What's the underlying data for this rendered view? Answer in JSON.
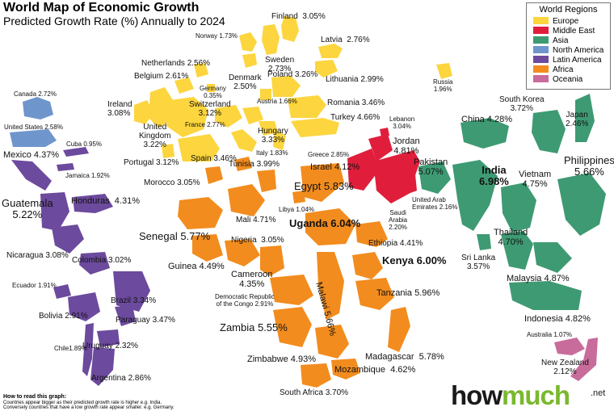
{
  "header": {
    "title": "World Map of Economic Growth",
    "subtitle": "Predicted Growth Rate (%) Annually to 2024"
  },
  "legend": {
    "title": "World Regions",
    "items": [
      {
        "label": "Europe",
        "color": "#fcd53f"
      },
      {
        "label": "Middle East",
        "color": "#e01e3c"
      },
      {
        "label": "Asia",
        "color": "#3e9a73"
      },
      {
        "label": "North America",
        "color": "#6f96cc"
      },
      {
        "label": "Latin America",
        "color": "#6c4a9d"
      },
      {
        "label": "Africa",
        "color": "#f28c1e"
      },
      {
        "label": "Oceania",
        "color": "#c86c9c"
      }
    ]
  },
  "countries": {
    "finland": "Finland  3.05%",
    "norway": "Norway 1.73%",
    "latvia": "Latvia  2.76%",
    "netherlands": "Netherlands 2.56%",
    "sweden": "Sweden\n2.73%",
    "lithuania": "Lithuania 2.99%",
    "belgium": "Belgium 2.61%",
    "denmark": "Denmark\n2.50%",
    "poland": "Poland 3.26%",
    "russia": "Russia\n1.96%",
    "germany": "Germany\n0.35%",
    "austria": "Austria 1.66%",
    "ireland": "Ireland\n3.08%",
    "switzerland": "Switzerland\n3.12%",
    "romania": "Romania 3.46%",
    "uk": "United\nKingdom\n3.22%",
    "france": "France 2.77%",
    "hungary": "Hungary\n3.33%",
    "turkey": "Turkey 4.66%",
    "lebanon": "Lebanon\n3.04%",
    "portugal": "Portugal 3.12%",
    "spain": "Spain 3.46%",
    "italy": "Italy 1.83%",
    "greece": "Greece 2.85%",
    "tunisia": "Tunisia 3.99%",
    "jordan": "Jordan\n4.81%",
    "israel": "Israel 4.12%",
    "egypt": "Egypt 5.83%",
    "pakistan": "Pakistan\n5.07%",
    "morocco": "Morocco 3.05%",
    "uae": "United Arab\nEmirates 2.16%",
    "saudi": "Saudi\nArabia\n2.20%",
    "libya": "Libya 1.04%",
    "mali": "Mali 4.71%",
    "uganda": "Uganda 6.04%",
    "senegal": "Senegal 5.77%",
    "nigeria": "Nigeria  3.05%",
    "ethiopia": "Ethiopia 4.41%",
    "kenya": "Kenya 6.00%",
    "guinea": "Guinea 4.49%",
    "cameroon": "Cameroon\n4.35%",
    "malawi": "Malawi 5.66%",
    "tanzania": "Tanzania 5.96%",
    "drc": "Democratic Republic\nof the Congo 2.91%",
    "zambia": "Zambia 5.55%",
    "madagascar": "Madagascar  5.78%",
    "zimbabwe": "Zimbabwe 4.93%",
    "mozambique": "Mozambique  4.62%",
    "south_africa": "South Africa 3.70%",
    "china": "China 4.28%",
    "south_korea": "South Korea\n3.72%",
    "japan": "Japan\n2.46%",
    "india": "India\n6.98%",
    "vietnam": "Vietnam\n4.75%",
    "philippines": "Philippines\n5.66%",
    "thailand": "Thailand\n4.70%",
    "sri_lanka": "Sri Lanka\n3.57%",
    "malaysia": "Malaysia 4.87%",
    "indonesia": "Indonesia 4.82%",
    "australia": "Australia 1.07%",
    "new_zealand": "New Zealand\n2.12%",
    "canada": "Canada 2.72%",
    "usa": "United States 2.58%",
    "mexico": "Mexico 4.37%",
    "cuba": "Cuba 0.95%",
    "jamaica": "Jamaica 1.92%",
    "guatemala": "Guatemala\n5.22%",
    "honduras": "Honduras  4.31%",
    "nicaragua": "Nicaragua 3.08%",
    "colombia": "Colombia 3.02%",
    "ecuador": "Ecuador 1.91%",
    "brazil": "Brazil 3.34%",
    "bolivia": "Bolivia 2.91%",
    "paraguay": "Paraguay 3.47%",
    "chile": "Chile1.89%",
    "uruguay": "Uruguay 2.32%",
    "argentina": "Argentina 2.86%"
  },
  "howto": {
    "title": "How to read this graph:",
    "line1": "Countries appear bigger as their predicted growth rate is higher e.g. India.",
    "line2": "Conversely countries that have a low growth rate appear smaller. e.g. Germany."
  },
  "brand": {
    "how": "how",
    "much": "much",
    "suffix": ".net"
  }
}
